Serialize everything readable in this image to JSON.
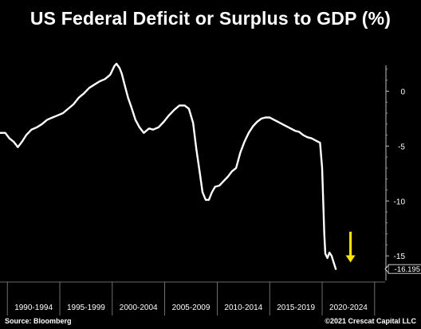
{
  "title": "US Federal Deficit or Surplus to GDP (%)",
  "footer": {
    "source": "Source: Bloomberg",
    "copyright": "©2021 Crescat Capital LLC"
  },
  "colors": {
    "background": "#000000",
    "line": "#ffffff",
    "arrow": "#ffe600",
    "last_value_box": "#ffffff"
  },
  "chart_data": {
    "type": "line",
    "title": "US Federal Deficit or Surplus to GDP (%)",
    "xlabel": "",
    "ylabel": "",
    "x_unit": "year",
    "xlim": [
      1989.3,
      2026.0
    ],
    "ylim": [
      -16.8,
      2.5
    ],
    "y_ticks": [
      0,
      -5,
      -10,
      -15
    ],
    "y_tick_labels": [
      "0",
      "-5",
      "-10",
      "-15"
    ],
    "y_axis_position": "right",
    "x_period_labels": [
      {
        "label": "1990-1994",
        "start": 1990,
        "end": 1995
      },
      {
        "label": "1995-1999",
        "start": 1995,
        "end": 2000
      },
      {
        "label": "2000-2004",
        "start": 2000,
        "end": 2005
      },
      {
        "label": "2005-2009",
        "start": 2005,
        "end": 2010
      },
      {
        "label": "2010-2014",
        "start": 2010,
        "end": 2015
      },
      {
        "label": "2015-2019",
        "start": 2015,
        "end": 2020
      },
      {
        "label": "2020-2024",
        "start": 2020,
        "end": 2025
      }
    ],
    "grid": false,
    "last_value_label": "-16.195",
    "annotation": {
      "type": "arrow-down",
      "x": 2022.7,
      "y_from": -12.8,
      "y_to": -15.6
    },
    "series": [
      {
        "name": "",
        "x": [
          1989.3,
          1989.8,
          1990.2,
          1990.6,
          1991.0,
          1991.4,
          1991.8,
          1992.3,
          1992.8,
          1993.3,
          1993.8,
          1994.3,
          1994.8,
          1995.3,
          1995.8,
          1996.3,
          1996.8,
          1997.3,
          1997.8,
          1998.3,
          1998.8,
          1999.3,
          1999.8,
          2000.2,
          2000.4,
          2000.7,
          2000.9,
          2001.2,
          2001.5,
          2001.8,
          2002.2,
          2002.6,
          2003.0,
          2003.5,
          2003.9,
          2004.4,
          2004.9,
          2005.4,
          2005.9,
          2006.4,
          2006.9,
          2007.3,
          2007.7,
          2008.0,
          2008.3,
          2008.6,
          2008.9,
          2009.2,
          2009.5,
          2009.8,
          2010.2,
          2010.6,
          2011.0,
          2011.4,
          2011.8,
          2012.2,
          2012.6,
          2013.0,
          2013.4,
          2013.8,
          2014.2,
          2014.6,
          2015.0,
          2015.4,
          2015.8,
          2016.2,
          2016.6,
          2017.0,
          2017.4,
          2017.8,
          2018.2,
          2018.6,
          2019.0,
          2019.4,
          2019.8,
          2020.0,
          2020.2,
          2020.3,
          2020.5,
          2020.7,
          2020.9,
          2021.1,
          2021.3
        ],
        "values": [
          -3.8,
          -3.8,
          -4.3,
          -4.6,
          -5.1,
          -4.6,
          -4.0,
          -3.5,
          -3.3,
          -3.0,
          -2.6,
          -2.4,
          -2.2,
          -2.0,
          -1.6,
          -1.2,
          -0.6,
          -0.2,
          0.3,
          0.6,
          0.9,
          1.1,
          1.5,
          2.3,
          2.5,
          2.1,
          1.6,
          0.5,
          -0.6,
          -1.4,
          -2.6,
          -3.3,
          -3.8,
          -3.4,
          -3.5,
          -3.3,
          -2.8,
          -2.2,
          -1.7,
          -1.3,
          -1.3,
          -1.6,
          -2.9,
          -5.2,
          -7.2,
          -9.2,
          -9.9,
          -9.9,
          -9.2,
          -8.7,
          -8.6,
          -8.2,
          -7.8,
          -7.3,
          -7.0,
          -5.6,
          -4.6,
          -3.8,
          -3.2,
          -2.8,
          -2.5,
          -2.4,
          -2.4,
          -2.6,
          -2.8,
          -3.0,
          -3.2,
          -3.4,
          -3.6,
          -3.7,
          -4.0,
          -4.2,
          -4.3,
          -4.5,
          -4.7,
          -7.0,
          -13.0,
          -14.8,
          -15.2,
          -14.7,
          -15.0,
          -15.6,
          -16.195
        ]
      }
    ]
  }
}
